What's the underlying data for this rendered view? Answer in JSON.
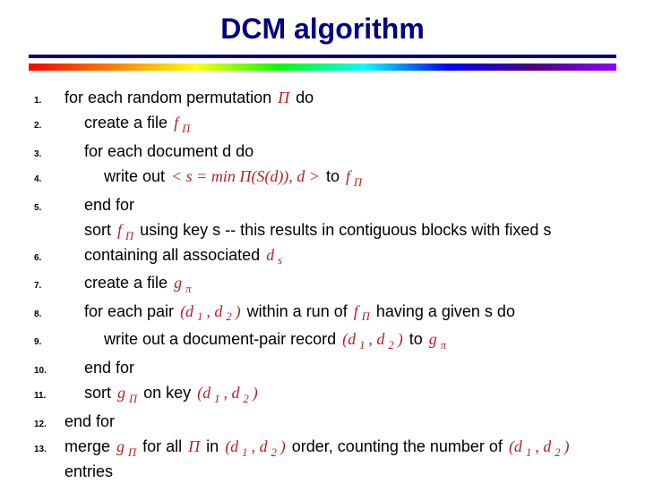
{
  "title": {
    "text": "DCM algorithm",
    "fontsize": 32,
    "color": "#000080"
  },
  "underline": {
    "color": "#000080",
    "height": 4
  },
  "spectrum": {
    "height": 8,
    "colors": [
      "#ff0000",
      "#ff7f00",
      "#ffff00",
      "#00ff00",
      "#00ffff",
      "#0000ff",
      "#4b0082",
      "#8f00ff"
    ]
  },
  "math_color": "#b22222",
  "body_fontsize": 18,
  "num_fontsize": 10,
  "lines": [
    {
      "n": "1.",
      "indent": 0,
      "parts": [
        {
          "t": "for each random permutation "
        },
        {
          "m": "Π"
        },
        {
          "t": " do"
        }
      ]
    },
    {
      "n": "2.",
      "indent": 1,
      "parts": [
        {
          "t": "create a file "
        },
        {
          "m": "f"
        },
        {
          "msub": "Π"
        }
      ]
    },
    {
      "n": "3.",
      "indent": 1,
      "parts": [
        {
          "t": "for each document d do"
        }
      ]
    },
    {
      "n": "4.",
      "indent": 2,
      "parts": [
        {
          "t": "write out "
        },
        {
          "m": "< s = min Π(S(d)), d >"
        },
        {
          "t": "          to    "
        },
        {
          "m": "f"
        },
        {
          "msub": "Π"
        }
      ]
    },
    {
      "n": "5.",
      "indent": 1,
      "parts": [
        {
          "t": "end for"
        }
      ]
    },
    {
      "n": "6.",
      "indent": 1,
      "parts": [
        {
          "t": "sort "
        },
        {
          "m": "f"
        },
        {
          "msub": "Π"
        },
        {
          "t": " using key s -- this results in contiguous blocks with fixed s containing all associated "
        },
        {
          "m": "d"
        },
        {
          "msub": "s"
        }
      ]
    },
    {
      "n": "7.",
      "indent": 1,
      "parts": [
        {
          "t": "create a file "
        },
        {
          "m": "g"
        },
        {
          "msub": "π"
        }
      ]
    },
    {
      "n": "8.",
      "indent": 1,
      "parts": [
        {
          "t": "for each pair "
        },
        {
          "m": "(d"
        },
        {
          "msub": "1"
        },
        {
          "m": ", d"
        },
        {
          "msub": "2"
        },
        {
          "m": ")"
        },
        {
          "t": "  within a run of "
        },
        {
          "m": "f"
        },
        {
          "msub": "Π"
        },
        {
          "t": "  having a given s do"
        }
      ]
    },
    {
      "n": "9.",
      "indent": 2,
      "parts": [
        {
          "t": "write out a document-pair record "
        },
        {
          "m": "(d"
        },
        {
          "msub": "1"
        },
        {
          "m": ", d"
        },
        {
          "msub": "2"
        },
        {
          "m": ")"
        },
        {
          "t": "   to   "
        },
        {
          "m": "g"
        },
        {
          "msub": "π"
        }
      ]
    },
    {
      "n": "10.",
      "indent": 1,
      "parts": [
        {
          "t": "end for"
        }
      ]
    },
    {
      "n": "11.",
      "indent": 1,
      "parts": [
        {
          "t": "sort "
        },
        {
          "m": "g"
        },
        {
          "msub": "Π"
        },
        {
          "t": " on key "
        },
        {
          "m": "(d"
        },
        {
          "msub": "1"
        },
        {
          "m": ", d"
        },
        {
          "msub": "2"
        },
        {
          "m": ")"
        }
      ]
    },
    {
      "n": "12.",
      "indent": 0,
      "parts": [
        {
          "t": "end for"
        }
      ]
    },
    {
      "n": "13.",
      "indent": 0,
      "parts": [
        {
          "t": "merge  "
        },
        {
          "m": "g"
        },
        {
          "msub": "Π"
        },
        {
          "t": "  for all "
        },
        {
          "m": "Π"
        },
        {
          "t": " in "
        },
        {
          "m": "(d"
        },
        {
          "msub": "1"
        },
        {
          "m": ", d"
        },
        {
          "msub": "2"
        },
        {
          "m": ")"
        },
        {
          "t": " order, counting the number of "
        },
        {
          "m": "(d"
        },
        {
          "msub": "1"
        },
        {
          "m": ", d"
        },
        {
          "msub": "2"
        },
        {
          "m": ")"
        },
        {
          "t": " entries"
        }
      ]
    }
  ]
}
